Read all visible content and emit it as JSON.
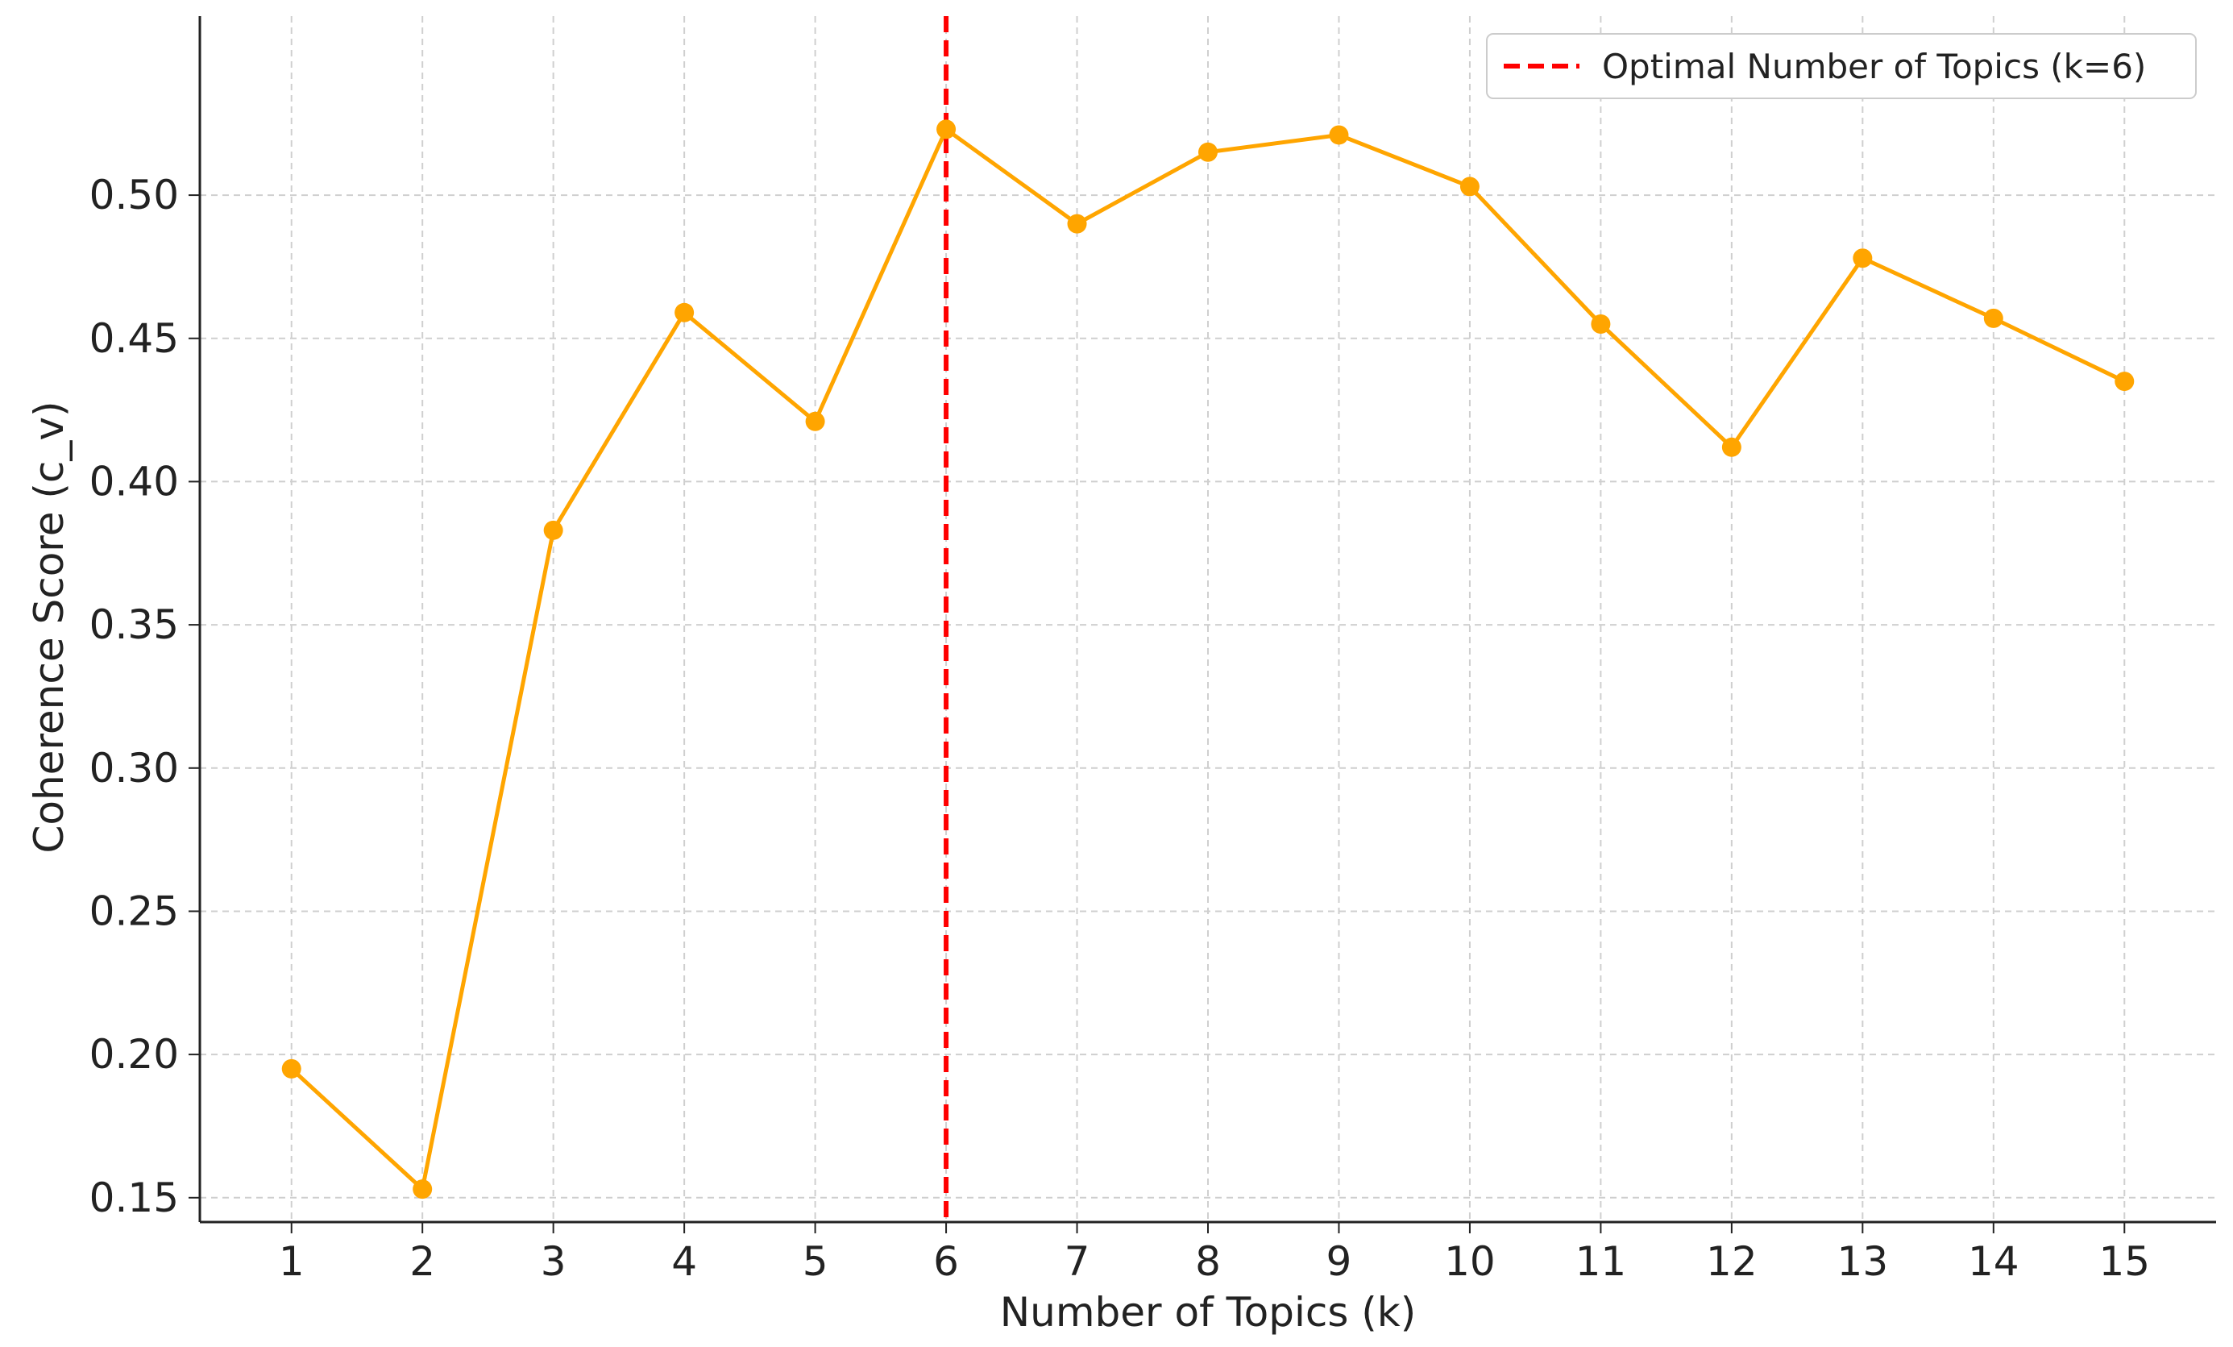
{
  "chart_data": {
    "type": "line",
    "title": "",
    "xlabel": "Number of Topics (k)",
    "ylabel": "Coherence Score (c_v)",
    "x": [
      1,
      2,
      3,
      4,
      5,
      6,
      7,
      8,
      9,
      10,
      11,
      12,
      13,
      14,
      15
    ],
    "xticks": [
      "1",
      "2",
      "3",
      "4",
      "5",
      "6",
      "7",
      "8",
      "9",
      "10",
      "11",
      "12",
      "13",
      "14",
      "15"
    ],
    "series": [
      {
        "name": "",
        "color": "#FFA500",
        "marker": "circle",
        "values": [
          0.195,
          0.153,
          0.383,
          0.459,
          0.421,
          0.523,
          0.49,
          0.515,
          0.521,
          0.503,
          0.455,
          0.412,
          0.478,
          0.457,
          0.435
        ]
      }
    ],
    "yticks": [
      "0.15",
      "0.20",
      "0.25",
      "0.30",
      "0.35",
      "0.40",
      "0.45",
      "0.50"
    ],
    "ytick_values": [
      0.15,
      0.2,
      0.25,
      0.3,
      0.35,
      0.4,
      0.45,
      0.5
    ],
    "xlim": [
      0.3,
      15.7
    ],
    "ylim": [
      0.1415,
      0.5625
    ],
    "grid": true,
    "grid_style": "dashed",
    "reference_line": {
      "x": 6,
      "color": "#FF0000",
      "style": "dashed",
      "label": "Optimal Number of Topics (k=6)"
    },
    "legend": {
      "position": "top-right",
      "entries": [
        "Optimal Number of Topics (k=6)"
      ]
    }
  }
}
